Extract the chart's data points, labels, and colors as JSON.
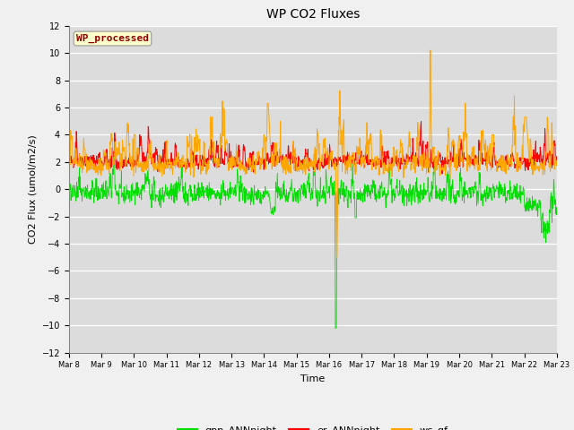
{
  "title": "WP CO2 Fluxes",
  "xlabel": "Time",
  "ylabel": "CO2 Flux (umol/m2/s)",
  "ylim": [
    -12,
    12
  ],
  "yticks": [
    -12,
    -10,
    -8,
    -6,
    -4,
    -2,
    0,
    2,
    4,
    6,
    8,
    10,
    12
  ],
  "annotation_text": "WP_processed",
  "annotation_color": "#8B0000",
  "annotation_bg": "#FFFFCC",
  "axes_bg": "#DCDCDC",
  "fig_bg": "#F0F0F0",
  "green_color": "#00DD00",
  "red_color": "#FF0000",
  "orange_color": "#FFA500",
  "n_points": 1440,
  "legend_labels": [
    "gpp_ANNnight",
    "er_ANNnight",
    "wc_gf"
  ],
  "xtick_labels": [
    "Mar 8",
    "Mar 9",
    "Mar 10",
    "Mar 11",
    "Mar 12",
    "Mar 13",
    "Mar 14",
    "Mar 15",
    "Mar 16",
    "Mar 17",
    "Mar 18",
    "Mar 19",
    "Mar 20",
    "Mar 21",
    "Mar 22",
    "Mar 23"
  ],
  "seed": 42
}
